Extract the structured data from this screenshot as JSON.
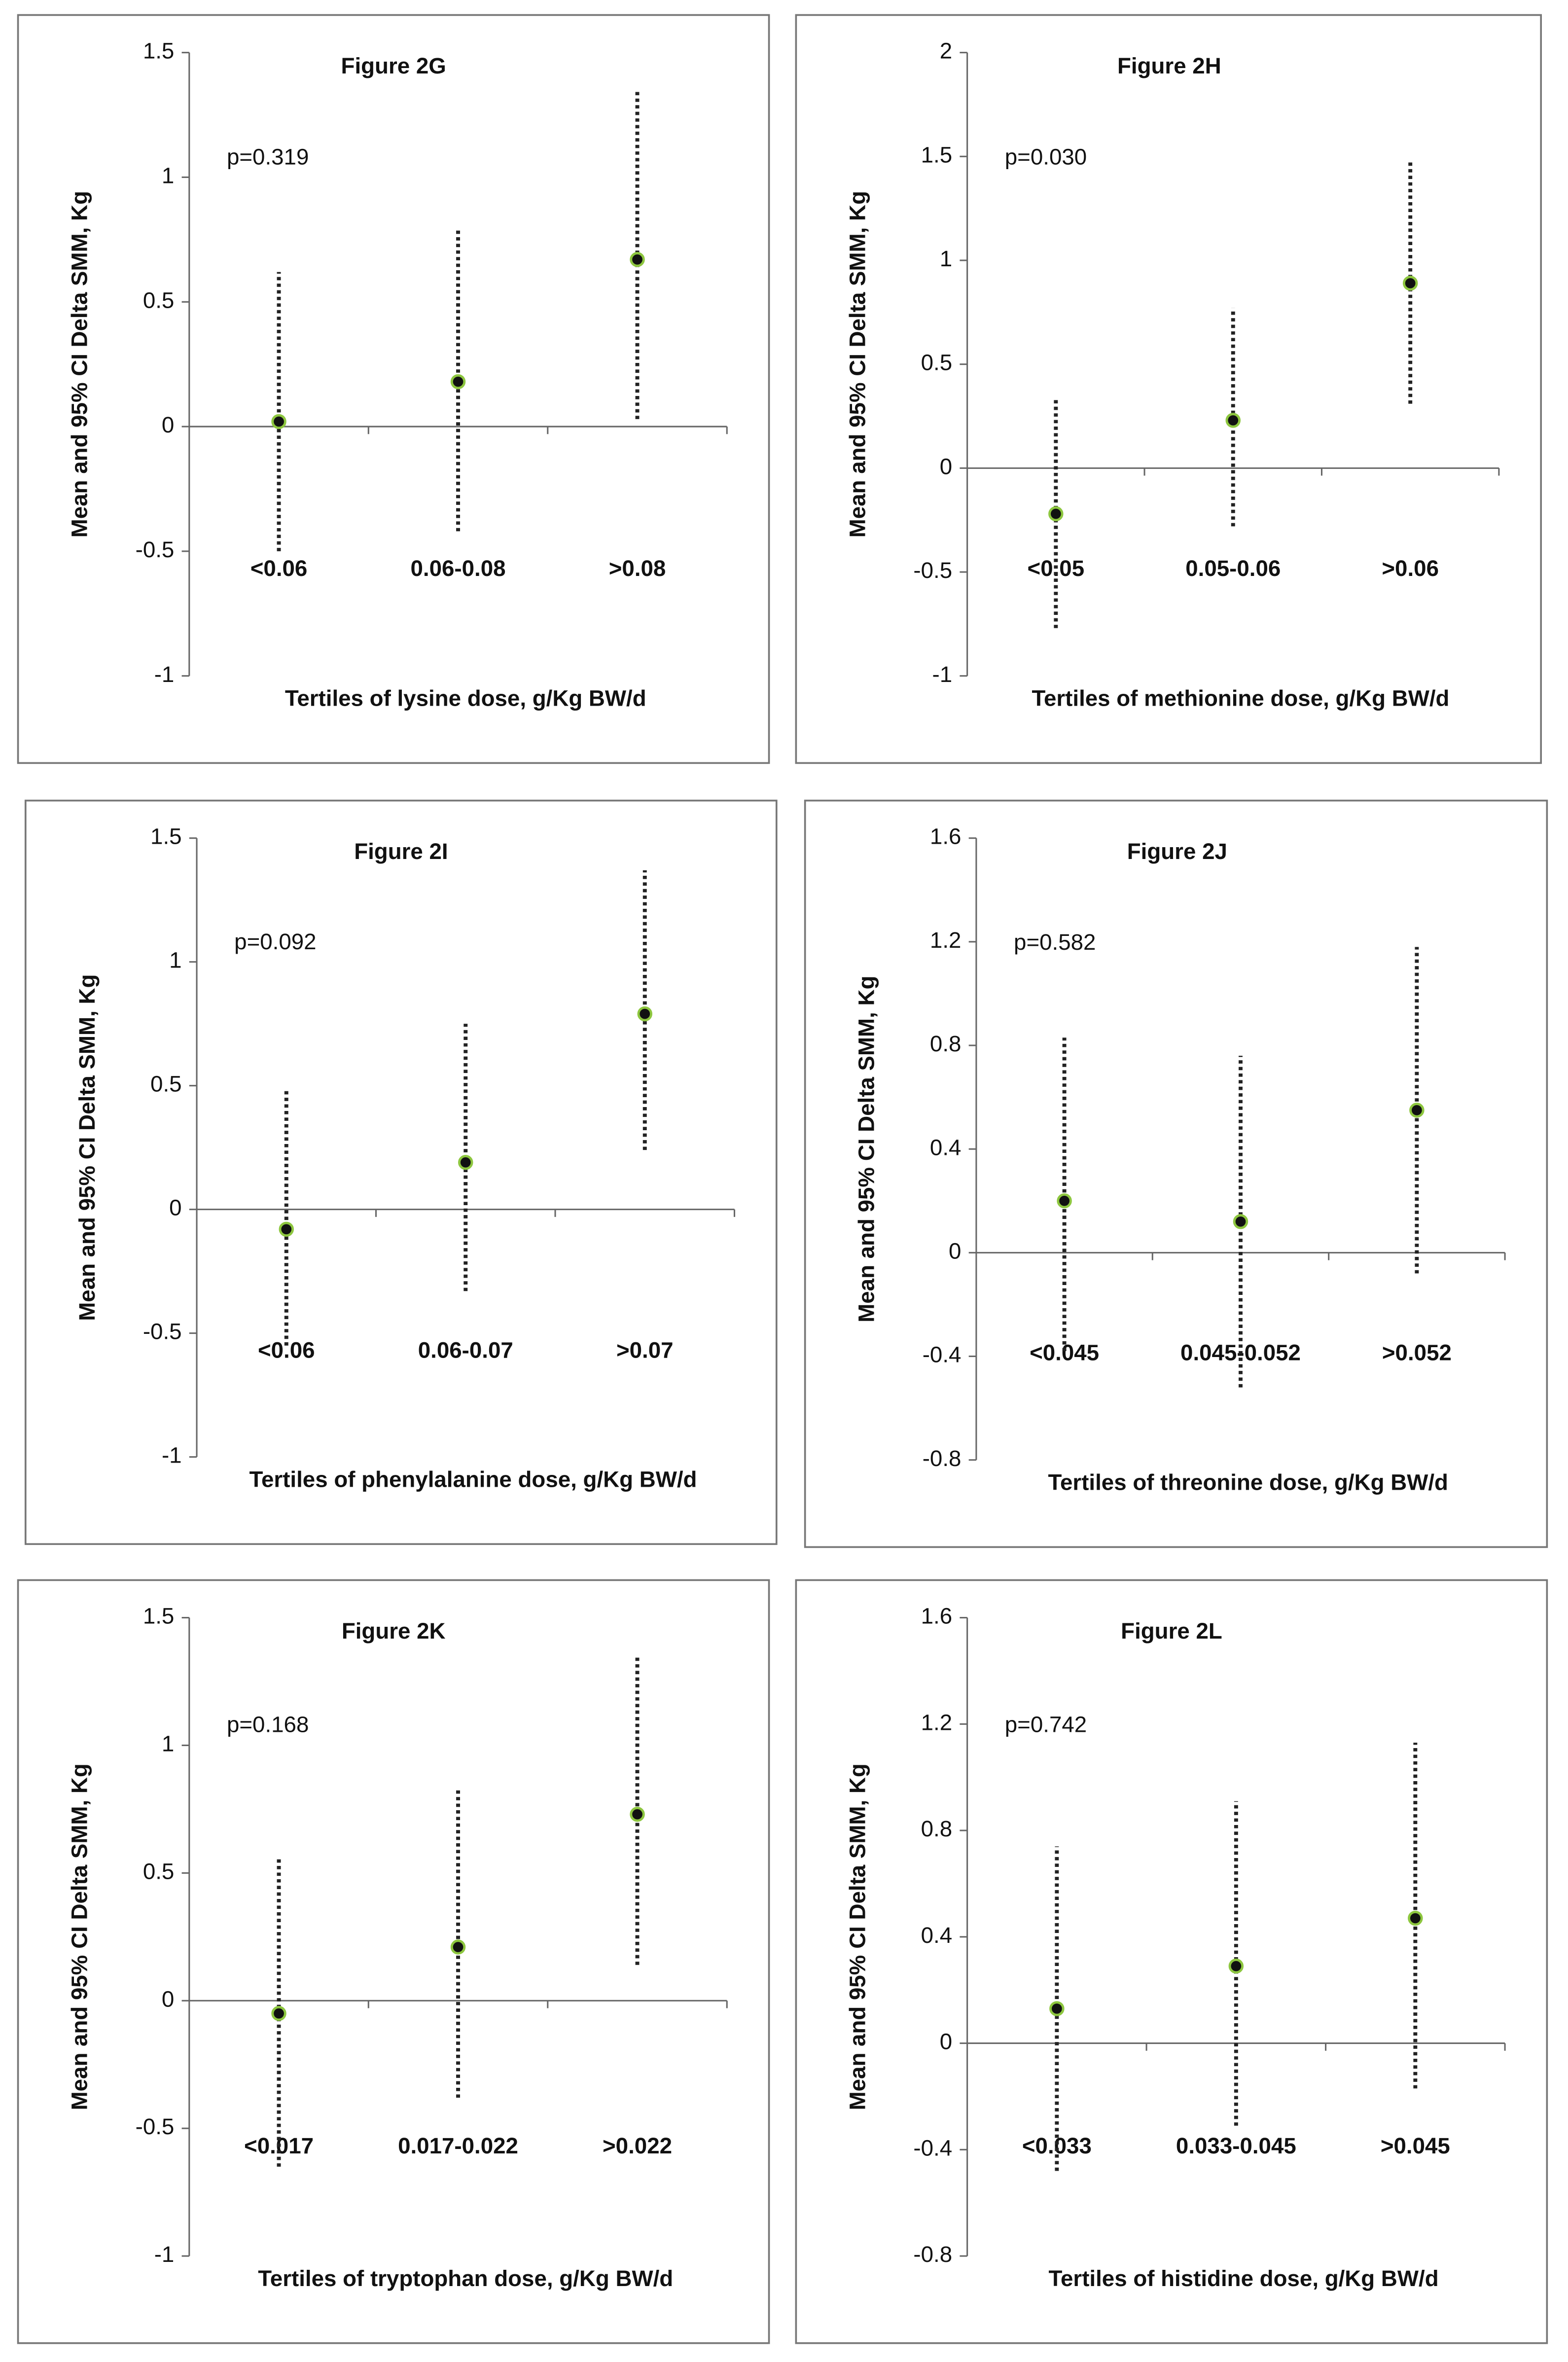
{
  "chart_data": [
    {
      "type": "errorbar",
      "title": "Figure 2G",
      "annotation": "p=0.319",
      "ylabel": "Mean and 95% CI Delta SMM, Kg",
      "xlabel": "Tertiles of lysine dose, g/Kg BW/d",
      "categories": [
        "<0.06",
        "0.06-0.08",
        ">0.08"
      ],
      "values": [
        0.02,
        0.18,
        0.67
      ],
      "ci_low": [
        -0.5,
        -0.42,
        0.03
      ],
      "ci_high": [
        0.62,
        0.79,
        1.35
      ],
      "ylim": [
        -1,
        1.5
      ],
      "yticks": [
        -1,
        -0.5,
        0,
        0.5,
        1,
        1.5
      ],
      "color": "#111111",
      "edgecolor": "#8dc63f"
    },
    {
      "type": "errorbar",
      "title": "Figure 2H",
      "annotation": "p=0.030",
      "ylabel": "Mean and 95% CI Delta SMM, Kg",
      "xlabel": "Tertiles of methionine dose, g/Kg BW/d",
      "categories": [
        "<0.05",
        "0.05-0.06",
        ">0.06"
      ],
      "values": [
        -0.22,
        0.23,
        0.89
      ],
      "ci_low": [
        -0.77,
        -0.28,
        0.31
      ],
      "ci_high": [
        0.33,
        0.77,
        1.48
      ],
      "ylim": [
        -1,
        2
      ],
      "yticks": [
        -1,
        -0.5,
        0,
        0.5,
        1,
        1.5,
        2
      ],
      "color": "#111111",
      "edgecolor": "#8dc63f"
    },
    {
      "type": "errorbar",
      "title": "Figure 2I",
      "annotation": "p=0.092",
      "ylabel": "Mean and 95% CI Delta SMM, Kg",
      "xlabel": "Tertiles of phenylalanine dose, g/Kg BW/d",
      "categories": [
        "<0.06",
        "0.06-0.07",
        ">0.07"
      ],
      "values": [
        -0.08,
        0.19,
        0.79
      ],
      "ci_low": [
        -0.55,
        -0.33,
        0.24
      ],
      "ci_high": [
        0.49,
        0.75,
        1.37
      ],
      "ylim": [
        -1,
        1.5
      ],
      "yticks": [
        -1,
        -0.5,
        0,
        0.5,
        1,
        1.5
      ],
      "color": "#111111",
      "edgecolor": "#8dc63f"
    },
    {
      "type": "errorbar",
      "title": "Figure 2J",
      "annotation": "p=0.582",
      "ylabel": "Mean and 95% CI Delta SMM, Kg",
      "xlabel": "Tertiles of threonine dose, g/Kg BW/d",
      "categories": [
        "<0.045",
        "0.045-0.052",
        ">0.052"
      ],
      "values": [
        0.2,
        0.12,
        0.55
      ],
      "ci_low": [
        -0.38,
        -0.52,
        -0.08
      ],
      "ci_high": [
        0.83,
        0.76,
        1.18
      ],
      "ylim": [
        -0.8,
        1.6
      ],
      "yticks": [
        -0.8,
        -0.4,
        0,
        0.4,
        0.8,
        1.2,
        1.6
      ],
      "color": "#111111",
      "edgecolor": "#8dc63f"
    },
    {
      "type": "errorbar",
      "title": "Figure 2K",
      "annotation": "p=0.168",
      "ylabel": "Mean and 95% CI Delta SMM, Kg",
      "xlabel": "Tertiles of tryptophan dose, g/Kg BW/d",
      "categories": [
        "<0.017",
        "0.017-0.022",
        ">0.022"
      ],
      "values": [
        -0.05,
        0.21,
        0.73
      ],
      "ci_low": [
        -0.65,
        -0.38,
        0.14
      ],
      "ci_high": [
        0.56,
        0.83,
        1.35
      ],
      "ylim": [
        -1,
        1.5
      ],
      "yticks": [
        -1,
        -0.5,
        0,
        0.5,
        1,
        1.5
      ],
      "color": "#111111",
      "edgecolor": "#8dc63f"
    },
    {
      "type": "errorbar",
      "title": "Figure 2L",
      "annotation": "p=0.742",
      "ylabel": "Mean and 95% CI Delta SMM, Kg",
      "xlabel": "Tertiles of histidine dose, g/Kg BW/d",
      "categories": [
        "<0.033",
        "0.033-0.045",
        ">0.045"
      ],
      "values": [
        0.13,
        0.29,
        0.47
      ],
      "ci_low": [
        -0.48,
        -0.31,
        -0.17
      ],
      "ci_high": [
        0.74,
        0.91,
        1.13
      ],
      "ylim": [
        -0.8,
        1.6
      ],
      "yticks": [
        -0.8,
        -0.4,
        0,
        0.4,
        0.8,
        1.2,
        1.6
      ],
      "color": "#111111",
      "edgecolor": "#8dc63f"
    }
  ]
}
